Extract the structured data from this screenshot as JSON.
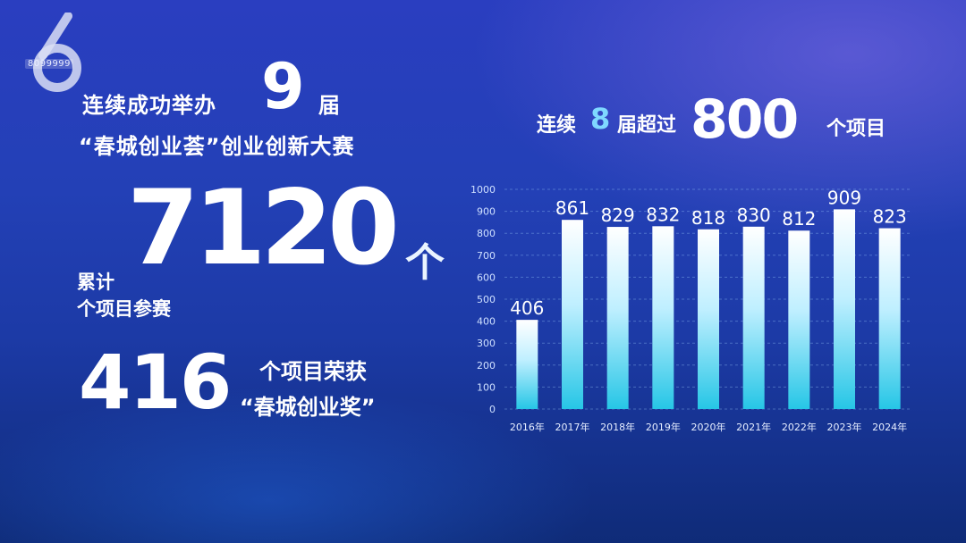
{
  "logo": {
    "number": "6",
    "text": "8099999"
  },
  "headline_left": {
    "line1": "连续成功举办",
    "nine": "9",
    "jie": "届",
    "line2": "“春城创业荟”创业创新大赛"
  },
  "stat_total": {
    "label_line1": "累计",
    "label_line2": "个项目参赛",
    "value": "7120",
    "unit": "个"
  },
  "stat_award": {
    "value": "416",
    "label_line1": "个项目荣获",
    "label_line2": "“春城创业奖”"
  },
  "headline_right": {
    "pre": "连续",
    "eight": "8",
    "jie": "届超过",
    "value": "800",
    "post": "个项目"
  },
  "colors": {
    "bar_top": "#ffffff",
    "bar_bottom": "#28c8e8",
    "accent": "#7fd8ff"
  },
  "chart_data": {
    "type": "bar",
    "categories": [
      "2016年",
      "2017年",
      "2018年",
      "2019年",
      "2020年",
      "2021年",
      "2022年",
      "2023年",
      "2024年"
    ],
    "values": [
      406,
      861,
      829,
      832,
      818,
      830,
      812,
      909,
      823
    ],
    "ylim": [
      0,
      1000
    ],
    "yticks": [
      "0",
      "100",
      "200",
      "300",
      "400",
      "500",
      "600",
      "700",
      "800",
      "900",
      "1000"
    ],
    "grid": true
  }
}
